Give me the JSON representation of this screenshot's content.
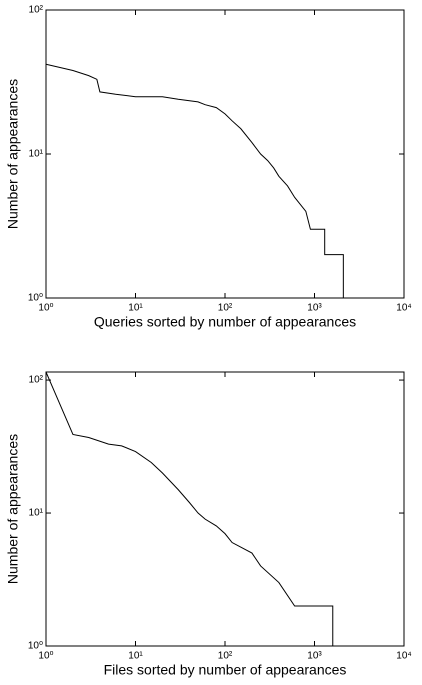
{
  "chart_data": [
    {
      "type": "line",
      "xlabel": "Queries sorted by number of appearances",
      "ylabel": "Number of appearances",
      "xscale": "log",
      "yscale": "log",
      "xlim": [
        1,
        10000
      ],
      "ylim": [
        1,
        100
      ],
      "xticks": [
        {
          "value": 1,
          "label": "10⁰"
        },
        {
          "value": 10,
          "label": "10¹"
        },
        {
          "value": 100,
          "label": "10²"
        },
        {
          "value": 1000,
          "label": "10³"
        },
        {
          "value": 10000,
          "label": "10⁴"
        }
      ],
      "yticks": [
        {
          "value": 1,
          "label": "10⁰"
        },
        {
          "value": 10,
          "label": "10¹"
        },
        {
          "value": 100,
          "label": "10²"
        }
      ],
      "series": [
        {
          "color": "#000000",
          "x": [
            1,
            2,
            3,
            3.7,
            4,
            6,
            10,
            20,
            30,
            50,
            60,
            80,
            100,
            120,
            150,
            200,
            250,
            300,
            350,
            400,
            500,
            600,
            800,
            900,
            1300,
            1300,
            2100,
            2100
          ],
          "values": [
            42,
            38,
            35,
            33,
            27,
            26,
            25,
            25,
            24,
            23,
            22,
            21,
            19,
            17,
            15,
            12,
            10,
            9,
            8,
            7,
            6,
            5,
            4,
            3,
            3,
            2,
            2,
            1
          ]
        }
      ]
    },
    {
      "type": "line",
      "xlabel": "Files sorted by number of appearances",
      "ylabel": "Number of appearances",
      "xscale": "log",
      "yscale": "log",
      "xlim": [
        1,
        10000
      ],
      "ylim": [
        1,
        115
      ],
      "xticks": [
        {
          "value": 1,
          "label": "10⁰"
        },
        {
          "value": 10,
          "label": "10¹"
        },
        {
          "value": 100,
          "label": "10²"
        },
        {
          "value": 1000,
          "label": "10³"
        },
        {
          "value": 10000,
          "label": "10⁴"
        }
      ],
      "yticks": [
        {
          "value": 1,
          "label": "10⁰"
        },
        {
          "value": 10,
          "label": "10¹"
        },
        {
          "value": 100,
          "label": "10²"
        }
      ],
      "series": [
        {
          "color": "#000000",
          "x": [
            1,
            2,
            3,
            5,
            7,
            10,
            15,
            20,
            30,
            40,
            50,
            60,
            80,
            100,
            120,
            200,
            250,
            400,
            600,
            1600,
            1600
          ],
          "values": [
            115,
            39,
            37,
            33,
            32,
            29,
            24,
            20,
            15,
            12,
            10,
            9,
            8,
            7,
            6,
            5,
            4,
            3,
            2,
            2,
            1
          ]
        }
      ]
    }
  ]
}
